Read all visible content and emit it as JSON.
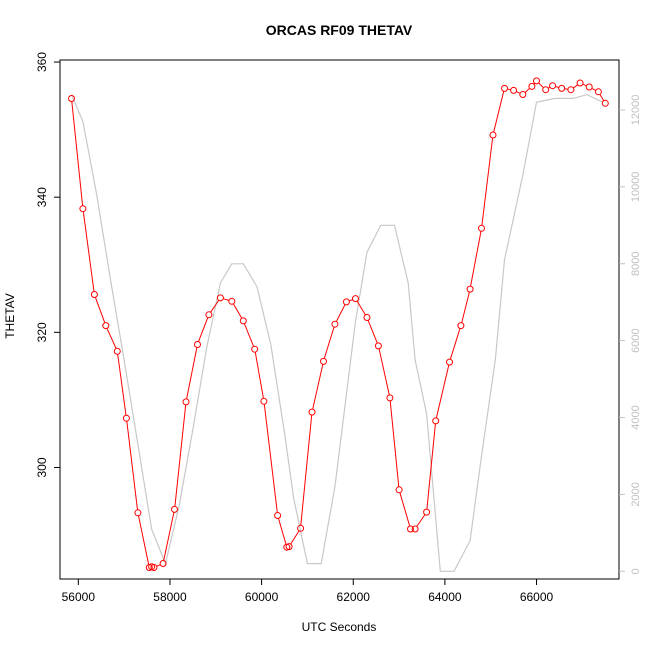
{
  "chart_data": {
    "type": "line",
    "title": "ORCAS RF09 THETAV",
    "xlabel": "UTC Seconds",
    "ylabel": "THETAV",
    "xlim": [
      55600,
      67800
    ],
    "ylim": [
      283.5,
      360.3
    ],
    "ylim_right": [
      -200,
      13300
    ],
    "x_ticks": [
      56000,
      58000,
      60000,
      62000,
      64000,
      66000
    ],
    "y_ticks": [
      300,
      320,
      340,
      360
    ],
    "y2_ticks": [
      0,
      2000,
      4000,
      6000,
      8000,
      10000,
      12000
    ],
    "grid": false,
    "legend": "none",
    "colors": {
      "primary": "#ff0000",
      "secondary": "#c8c8c8"
    },
    "series": [
      {
        "axis": "left",
        "style": "line+circles",
        "x": [
          55850,
          56100,
          56350,
          56600,
          56850,
          57050,
          57300,
          57550,
          57600,
          57650,
          57850,
          58100,
          58350,
          58600,
          58850,
          59100,
          59350,
          59600,
          59850,
          60050,
          60350,
          60550,
          60600,
          60850,
          61100,
          61350,
          61600,
          61850,
          62050,
          62300,
          62550,
          62800,
          63000,
          63250,
          63350,
          63600,
          63800,
          64100,
          64350,
          64550,
          64800,
          65050,
          65300,
          65500,
          65700,
          65900,
          66000,
          66200,
          66350,
          66550,
          66750,
          66950,
          67150,
          67350,
          67500
        ],
        "y": [
          354.6,
          338.3,
          325.6,
          321.0,
          317.2,
          307.3,
          293.3,
          285.2,
          285.3,
          285.2,
          285.8,
          293.8,
          309.7,
          318.2,
          322.6,
          325.1,
          324.6,
          321.7,
          317.5,
          309.8,
          292.9,
          288.2,
          288.3,
          291.0,
          308.2,
          315.7,
          321.2,
          324.5,
          325.0,
          322.2,
          318.0,
          310.3,
          296.7,
          290.9,
          290.9,
          293.4,
          306.9,
          315.6,
          321.0,
          326.4,
          335.4,
          349.2,
          356.1,
          355.8,
          355.2,
          356.4,
          357.2,
          355.9,
          356.5,
          356.1,
          355.9,
          356.9,
          356.3,
          355.6,
          353.9
        ]
      },
      {
        "axis": "right",
        "style": "line",
        "x": [
          55850,
          56100,
          56400,
          56700,
          57000,
          57300,
          57600,
          57900,
          58200,
          58500,
          58800,
          59100,
          59350,
          59600,
          59900,
          60200,
          60500,
          60700,
          61000,
          61300,
          61600,
          61850,
          62050,
          62300,
          62600,
          62900,
          63200,
          63350,
          63600,
          63900,
          64200,
          64550,
          64800,
          65100,
          65300,
          65700,
          66000,
          66400,
          66800,
          67100,
          67450
        ],
        "y": [
          12400,
          11700,
          9800,
          7600,
          5500,
          3300,
          1100,
          200,
          1700,
          3700,
          5800,
          7500,
          8000,
          8000,
          7400,
          5900,
          3600,
          1900,
          200,
          200,
          2200,
          4600,
          6500,
          8300,
          9000,
          9000,
          7500,
          5500,
          4100,
          0,
          0,
          800,
          3000,
          5500,
          8100,
          10300,
          12200,
          12300,
          12300,
          12400,
          12200
        ]
      }
    ]
  }
}
